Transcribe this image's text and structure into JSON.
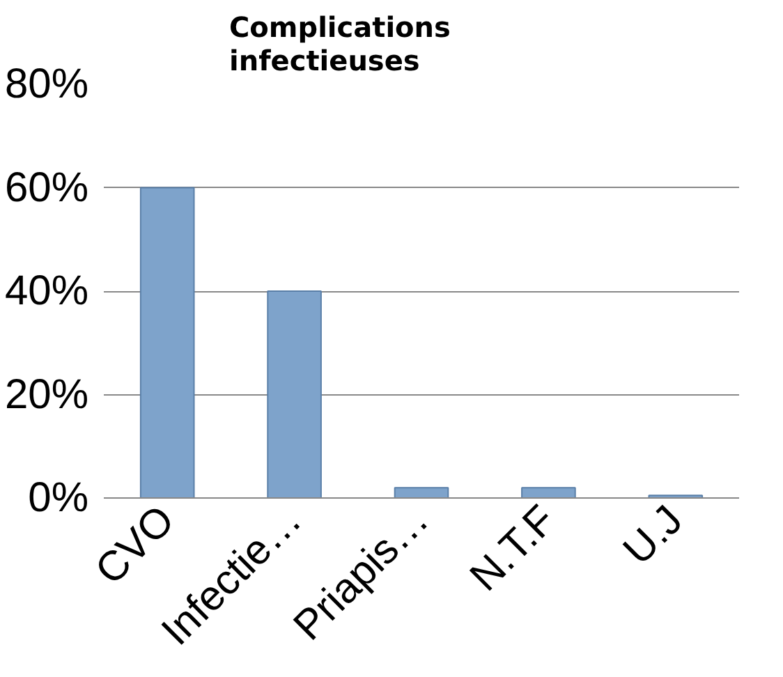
{
  "chart_data": {
    "type": "bar",
    "title": "Complications\ninfectieuses",
    "categories": [
      "CVO",
      "Infectie…",
      "Priapis…",
      "N.T.F",
      "U.J"
    ],
    "values": [
      60,
      40,
      2,
      2,
      0.5
    ],
    "color": "#7ea3cb",
    "ylim": [
      0,
      80
    ],
    "yticks": [
      {
        "value": 0,
        "label": "0%"
      },
      {
        "value": 20,
        "label": "20%"
      },
      {
        "value": 40,
        "label": "40%"
      },
      {
        "value": 60,
        "label": "60%"
      },
      {
        "value": 80,
        "label": "80%"
      }
    ],
    "grid": "y"
  }
}
